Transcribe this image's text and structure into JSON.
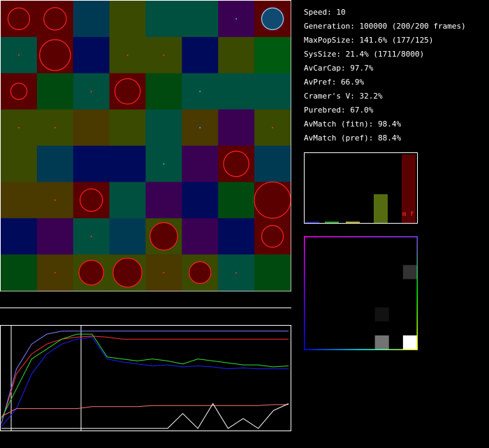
{
  "stats": {
    "speed": "Speed: 10",
    "generation": "Generation: 100000 (200/200 frames)",
    "maxpopsize": "MaxPopSize: 141.6% (177/125)",
    "syssize": "SysSize: 21.4% (1711/8000)",
    "avcarcap": "AvCarCap: 97.7%",
    "avpref": "AvPref: 66.9%",
    "cramers_v": "Cramer's V: 32.2%",
    "purebred": "Purebred: 67.0%",
    "avmatch_fitn": "AvMatch (fitn): 98.4%",
    "avmatch_pref": "AvMatch (pref): 88.4%"
  },
  "histogram": {
    "label": "m f",
    "bars": [
      {
        "bin": 1,
        "value": 0.02,
        "color": "#1a1aa8"
      },
      {
        "bin": 2,
        "value": 0.02,
        "color": "#1aa81a"
      },
      {
        "bin": 3,
        "value": 0.02,
        "color": "#a8a81a"
      },
      {
        "bin": 4,
        "value": 0.42,
        "color": "#556b10"
      },
      {
        "bin": 5,
        "value": 1.0,
        "color": "#5a0000"
      }
    ]
  },
  "matrix": {
    "cells": [
      {
        "row": 2,
        "col": 7,
        "level": 0.2
      },
      {
        "row": 5,
        "col": 5,
        "level": 0.07
      },
      {
        "row": 7,
        "col": 5,
        "level": 0.45
      },
      {
        "row": 7,
        "col": 7,
        "level": 1.0
      }
    ]
  },
  "grid": {
    "cols": 8,
    "rows": 8,
    "cells": [
      [
        "#5a0000",
        "#5a0000",
        "#003a52",
        "#3a4a00",
        "#005040",
        "#005040",
        "#3a0052",
        "#5a0000"
      ],
      [
        "#005040",
        "#5a0000",
        "#000a5a",
        "#3a4a00",
        "#3a4a00",
        "#000a5a",
        "#3a4a00",
        "#005a10"
      ],
      [
        "#5a0000",
        "#004a10",
        "#005040",
        "#5a0000",
        "#004a10",
        "#005040",
        "#005040",
        "#005040"
      ],
      [
        "#3a4a00",
        "#3a4a00",
        "#4a3a00",
        "#3a4a00",
        "#005040",
        "#4a3a00",
        "#3a0052",
        "#3a4a00"
      ],
      [
        "#3a4a00",
        "#003a52",
        "#000a5a",
        "#000a5a",
        "#005040",
        "#3a0052",
        "#5a0000",
        "#003a52"
      ],
      [
        "#4a3a00",
        "#4a3a00",
        "#5a0000",
        "#005040",
        "#3a0052",
        "#000a5a",
        "#004a10",
        "#5a0000"
      ],
      [
        "#000a5a",
        "#3a0052",
        "#005040",
        "#003a52",
        "#3a4a00",
        "#3a0052",
        "#000a5a",
        "#5a0000"
      ],
      [
        "#004a10",
        "#4a3a00",
        "#3a4a00",
        "#3a4a00",
        "#4a3a00",
        "#3a4a00",
        "#005040",
        "#004a10"
      ]
    ],
    "blobs": [
      {
        "r": 0,
        "c": 0,
        "size": 0.6,
        "kind": "red"
      },
      {
        "r": 0,
        "c": 1,
        "size": 0.62,
        "kind": "red"
      },
      {
        "r": 0,
        "c": 6,
        "size": 0.05,
        "kind": "cyan"
      },
      {
        "r": 0,
        "c": 7,
        "size": 0.6,
        "kind": "blue"
      },
      {
        "r": 1,
        "c": 0,
        "size": 0.05,
        "kind": "red"
      },
      {
        "r": 1,
        "c": 1,
        "size": 0.85,
        "kind": "red"
      },
      {
        "r": 1,
        "c": 3,
        "size": 0.05,
        "kind": "red"
      },
      {
        "r": 1,
        "c": 4,
        "size": 0.05,
        "kind": "red"
      },
      {
        "r": 2,
        "c": 0,
        "size": 0.45,
        "kind": "red"
      },
      {
        "r": 2,
        "c": 2,
        "size": 0.05,
        "kind": "red"
      },
      {
        "r": 2,
        "c": 3,
        "size": 0.7,
        "kind": "red"
      },
      {
        "r": 2,
        "c": 5,
        "size": 0.05,
        "kind": "cyan"
      },
      {
        "r": 3,
        "c": 0,
        "size": 0.05,
        "kind": "red"
      },
      {
        "r": 3,
        "c": 1,
        "size": 0.05,
        "kind": "red"
      },
      {
        "r": 3,
        "c": 5,
        "size": 0.05,
        "kind": "cyan"
      },
      {
        "r": 3,
        "c": 7,
        "size": 0.05,
        "kind": "red"
      },
      {
        "r": 4,
        "c": 4,
        "size": 0.05,
        "kind": "cyan"
      },
      {
        "r": 4,
        "c": 6,
        "size": 0.7,
        "kind": "red"
      },
      {
        "r": 5,
        "c": 1,
        "size": 0.05,
        "kind": "red"
      },
      {
        "r": 5,
        "c": 2,
        "size": 0.62,
        "kind": "red"
      },
      {
        "r": 5,
        "c": 7,
        "size": 1.0,
        "kind": "red"
      },
      {
        "r": 6,
        "c": 2,
        "size": 0.05,
        "kind": "red"
      },
      {
        "r": 6,
        "c": 4,
        "size": 0.76,
        "kind": "red"
      },
      {
        "r": 6,
        "c": 7,
        "size": 0.6,
        "kind": "red"
      },
      {
        "r": 7,
        "c": 1,
        "size": 0.05,
        "kind": "red"
      },
      {
        "r": 7,
        "c": 2,
        "size": 0.68,
        "kind": "red"
      },
      {
        "r": 7,
        "c": 3,
        "size": 0.8,
        "kind": "red"
      },
      {
        "r": 7,
        "c": 4,
        "size": 0.05,
        "kind": "red"
      },
      {
        "r": 7,
        "c": 5,
        "size": 0.6,
        "kind": "red"
      },
      {
        "r": 7,
        "c": 6,
        "size": 0.05,
        "kind": "red"
      }
    ]
  },
  "plot": {
    "series": [
      {
        "color": "#ff3030",
        "values": [
          0.05,
          0.55,
          0.75,
          0.85,
          0.9,
          0.92,
          0.93,
          0.92,
          0.9,
          0.9,
          0.9,
          0.9,
          0.9,
          0.9,
          0.9,
          0.9,
          0.9,
          0.9,
          0.9,
          0.9
        ]
      },
      {
        "color": "#8080ff",
        "values": [
          0.05,
          0.6,
          0.85,
          0.95,
          0.98,
          0.98,
          0.98,
          0.98,
          0.98,
          0.98,
          0.98,
          0.98,
          0.98,
          0.98,
          0.98,
          0.98,
          0.98,
          0.98,
          0.98,
          0.98
        ]
      },
      {
        "color": "#30e030",
        "values": [
          0.1,
          0.4,
          0.7,
          0.8,
          0.9,
          0.95,
          0.95,
          0.72,
          0.7,
          0.68,
          0.7,
          0.68,
          0.65,
          0.7,
          0.68,
          0.66,
          0.64,
          0.64,
          0.62,
          0.63
        ]
      },
      {
        "color": "#2020ff",
        "values": [
          0.02,
          0.2,
          0.55,
          0.75,
          0.85,
          0.9,
          0.92,
          0.7,
          0.67,
          0.65,
          0.63,
          0.64,
          0.62,
          0.63,
          0.62,
          0.6,
          0.61,
          0.6,
          0.6,
          0.6
        ]
      },
      {
        "color": "#ff7070",
        "values": [
          0.12,
          0.2,
          0.2,
          0.2,
          0.2,
          0.2,
          0.22,
          0.22,
          0.22,
          0.22,
          0.23,
          0.23,
          0.23,
          0.23,
          0.23,
          0.23,
          0.23,
          0.23,
          0.24,
          0.24
        ]
      },
      {
        "color": "#ffffff",
        "values": [
          0.0,
          0.0,
          0.0,
          0.0,
          0.0,
          0.0,
          0.0,
          0.0,
          0.0,
          0.0,
          0.0,
          0.0,
          0.15,
          0.0,
          0.25,
          0.0,
          0.1,
          0.0,
          0.18,
          0.25
        ]
      }
    ]
  }
}
